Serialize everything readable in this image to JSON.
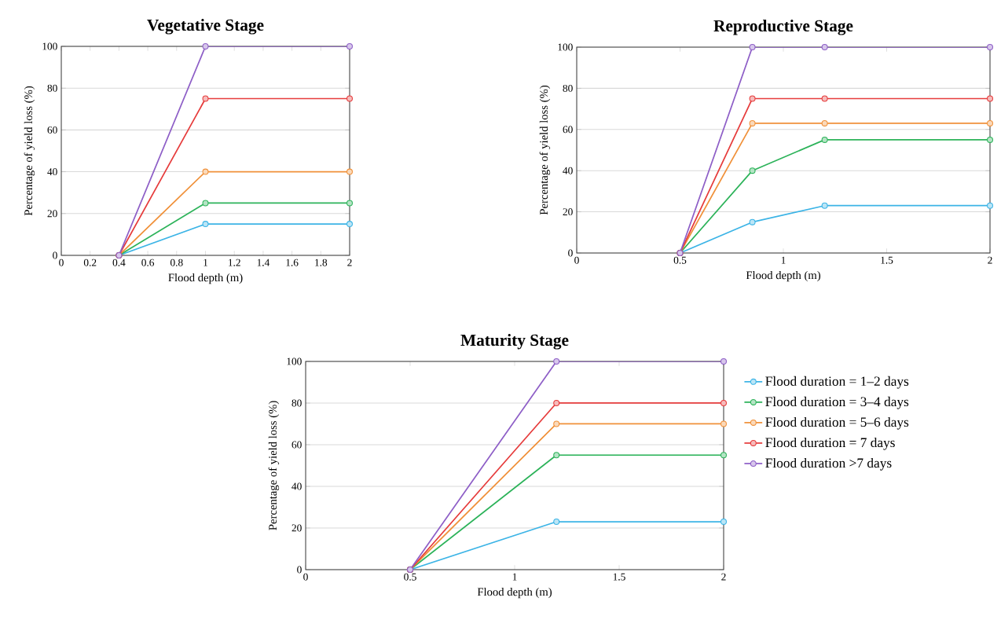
{
  "chart_data": [
    {
      "type": "line",
      "title": "Vegetative Stage",
      "xlabel": "Flood depth (m)",
      "ylabel": "Percentage of yield loss (%)",
      "x": [
        0.4,
        1,
        2
      ],
      "xlim": [
        0,
        2
      ],
      "xticks": [
        0,
        0.2,
        0.4,
        0.6,
        0.8,
        1,
        1.2,
        1.4,
        1.6,
        1.8,
        2
      ],
      "ylim": [
        0,
        100
      ],
      "yticks": [
        0,
        20,
        40,
        60,
        80,
        100
      ],
      "grid": "y",
      "marker": "circle",
      "series": [
        {
          "color": "#3cb4e6",
          "values": [
            0,
            15,
            15
          ]
        },
        {
          "color": "#2db35a",
          "values": [
            0,
            25,
            25
          ]
        },
        {
          "color": "#f0913a",
          "values": [
            0,
            40,
            40
          ]
        },
        {
          "color": "#e63c3c",
          "values": [
            0,
            75,
            75
          ]
        },
        {
          "color": "#8e5fc7",
          "values": [
            0,
            100,
            100
          ]
        }
      ]
    },
    {
      "type": "line",
      "title": "Reproductive Stage",
      "xlabel": "Flood depth (m)",
      "ylabel": "Percentage of yield loss (%)",
      "x": [
        0.5,
        0.85,
        1.2,
        2
      ],
      "xlim": [
        0,
        2
      ],
      "xticks": [
        0,
        0.5,
        1,
        1.5,
        2
      ],
      "ylim": [
        0,
        100
      ],
      "yticks": [
        0,
        20,
        40,
        60,
        80,
        100
      ],
      "grid": "y",
      "marker": "circle",
      "series": [
        {
          "color": "#3cb4e6",
          "values": [
            0,
            15,
            23,
            23
          ]
        },
        {
          "color": "#2db35a",
          "values": [
            0,
            40,
            55,
            55
          ]
        },
        {
          "color": "#f0913a",
          "values": [
            0,
            63,
            63,
            63
          ]
        },
        {
          "color": "#e63c3c",
          "values": [
            0,
            75,
            75,
            75
          ]
        },
        {
          "color": "#8e5fc7",
          "values": [
            0,
            100,
            100,
            100
          ]
        }
      ]
    },
    {
      "type": "line",
      "title": "Maturity Stage",
      "xlabel": "Flood depth (m)",
      "ylabel": "Percentage of yield loss (%)",
      "x": [
        0.5,
        1.2,
        2
      ],
      "xlim": [
        0,
        2
      ],
      "xticks": [
        0,
        0.5,
        1,
        1.5,
        2
      ],
      "ylim": [
        0,
        100
      ],
      "yticks": [
        0,
        20,
        40,
        60,
        80,
        100
      ],
      "grid": "y",
      "marker": "circle",
      "legend": "right",
      "series": [
        {
          "name": "Flood duration = 1–2 days",
          "color": "#3cb4e6",
          "values": [
            0,
            23,
            23
          ]
        },
        {
          "name": "Flood duration = 3–4 days",
          "color": "#2db35a",
          "values": [
            0,
            55,
            55
          ]
        },
        {
          "name": "Flood duration = 5–6 days",
          "color": "#f0913a",
          "values": [
            0,
            70,
            70
          ]
        },
        {
          "name": "Flood duration = 7 days",
          "color": "#e63c3c",
          "values": [
            0,
            80,
            80
          ]
        },
        {
          "name": "Flood duration >7 days",
          "color": "#8e5fc7",
          "values": [
            0,
            100,
            100
          ]
        }
      ]
    }
  ]
}
